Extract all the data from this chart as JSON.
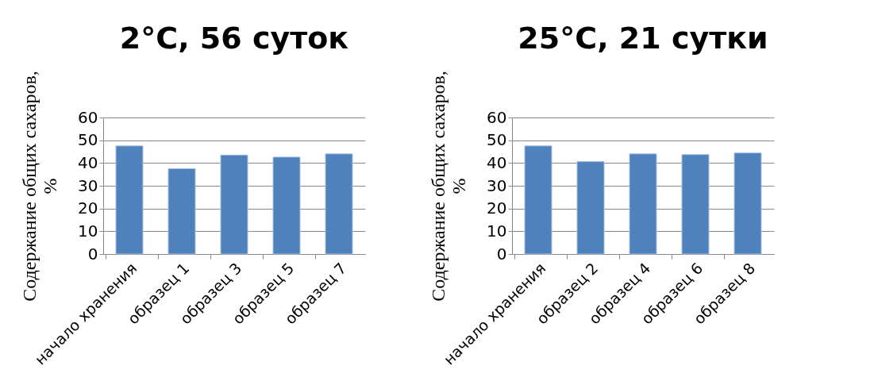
{
  "chart_data": [
    {
      "type": "bar",
      "title": "2°C, 56 суток",
      "ylabel": "Содержание общих сахаров, %",
      "categories": [
        "начало хранения",
        "образец 1",
        "образец 3",
        "образец 5",
        "образец 7"
      ],
      "values": [
        47.5,
        37.5,
        43.5,
        42.6,
        44.0
      ],
      "color": "#4f81bd",
      "ylim": [
        0,
        60
      ],
      "yticks": [
        0,
        10,
        20,
        30,
        40,
        50,
        60
      ],
      "grid": "y"
    },
    {
      "type": "bar",
      "title": "25°C, 21 сутки",
      "ylabel": "Содержание общих сахаров, %",
      "categories": [
        "начало хранения",
        "образец 2",
        "образец 4",
        "образец 6",
        "образец 8"
      ],
      "values": [
        47.5,
        40.6,
        44.0,
        43.7,
        44.4
      ],
      "color": "#4f81bd",
      "ylim": [
        0,
        60
      ],
      "yticks": [
        0,
        10,
        20,
        30,
        40,
        50,
        60
      ],
      "grid": "y"
    }
  ]
}
